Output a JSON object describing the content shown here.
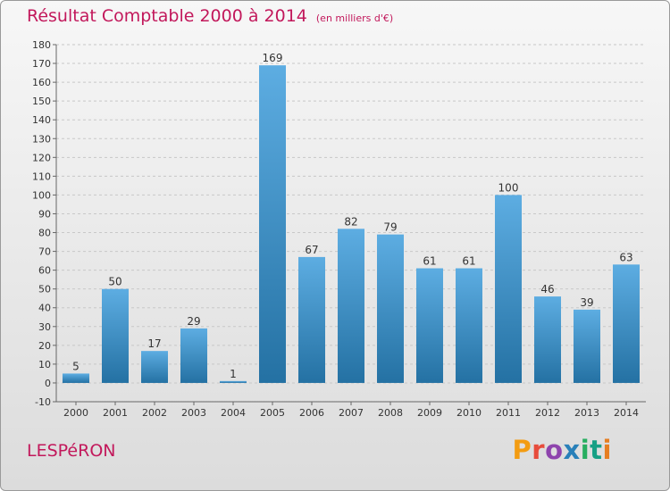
{
  "header": {
    "title": "Résultat Comptable 2000 à 2014",
    "unit": "(en milliers d'€)"
  },
  "footer": {
    "commune": "LESPéRON",
    "brand": "Proxiti",
    "brand_colors": [
      "#f39c12",
      "#e74c3c",
      "#8e44ad",
      "#2980b9",
      "#27ae60",
      "#16a085",
      "#e67e22"
    ]
  },
  "colors": {
    "title": "#c2185b",
    "bar_top": "#5dade2",
    "bar_bottom": "#2471a3",
    "grid": "#c8c8c8",
    "axis": "#666666",
    "label": "#333333"
  },
  "chart_data": {
    "type": "bar",
    "title": "Résultat Comptable 2000 à 2014",
    "xlabel": "",
    "ylabel": "(en milliers d'€)",
    "categories": [
      "2000",
      "2001",
      "2002",
      "2003",
      "2004",
      "2005",
      "2006",
      "2007",
      "2008",
      "2009",
      "2010",
      "2011",
      "2012",
      "2013",
      "2014"
    ],
    "values": [
      5,
      50,
      17,
      29,
      1,
      169,
      67,
      82,
      79,
      61,
      61,
      100,
      46,
      39,
      63
    ],
    "ylim": [
      -10,
      180
    ],
    "yticks": [
      -10,
      0,
      10,
      20,
      30,
      40,
      50,
      60,
      70,
      80,
      90,
      100,
      110,
      120,
      130,
      140,
      150,
      160,
      170,
      180
    ],
    "grid": true,
    "data_labels": true
  }
}
